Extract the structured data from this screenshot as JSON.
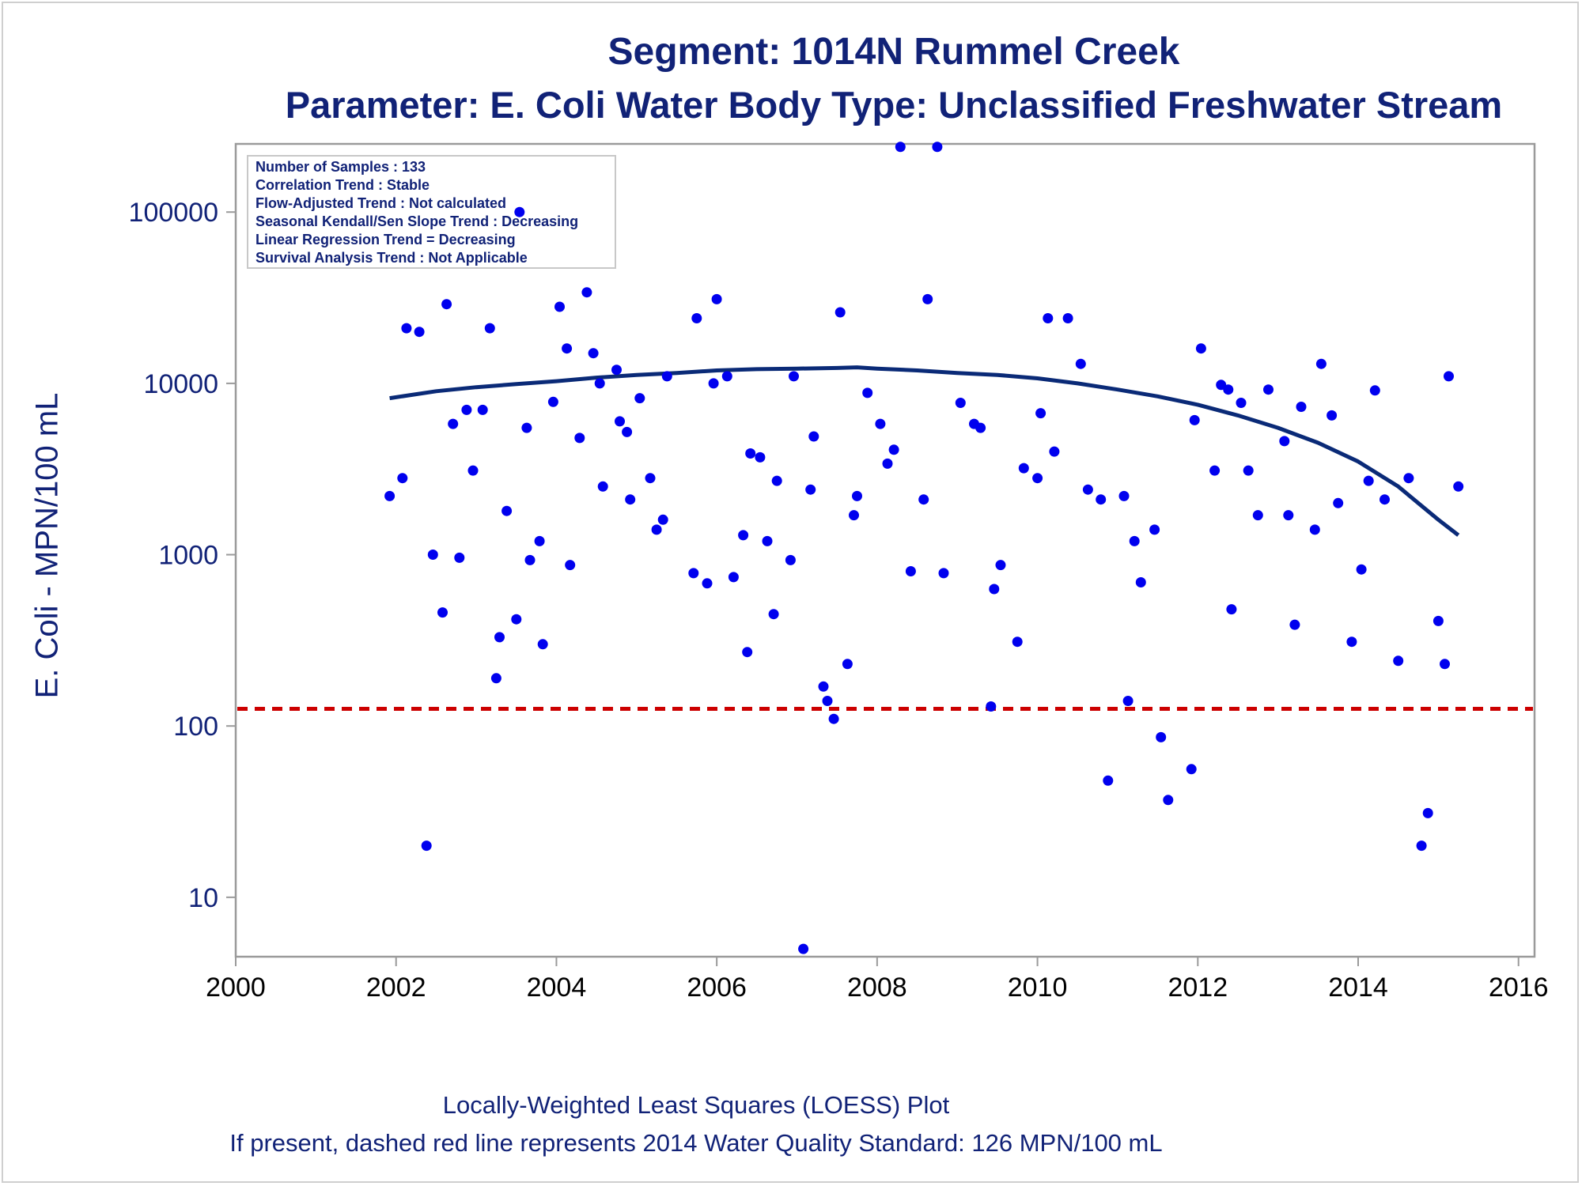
{
  "title": "Segment: 1014N  Rummel Creek",
  "subtitle": "Parameter: E. Coli   Water Body Type: Unclassified Freshwater Stream",
  "ylabel": "E. Coli - MPN/100 mL",
  "footnotes": [
    "Locally-Weighted Least Squares (LOESS) Plot",
    "If present, dashed red line represents 2014 Water Quality Standard: 126 MPN/100 mL"
  ],
  "stats_box": [
    "Number of Samples : 133",
    "Correlation Trend : Stable",
    "Flow-Adjusted Trend : Not calculated",
    "Seasonal Kendall/Sen Slope Trend : Decreasing",
    "Linear Regression Trend = Decreasing",
    "Survival Analysis Trend : Not Applicable"
  ],
  "colors": {
    "text": "#112277",
    "points": "#0000ee",
    "loess": "#0a2a77",
    "standard_line": "#cc0000",
    "axis": "#9a9a9a"
  },
  "chart_data": {
    "type": "scatter",
    "x_ticks": [
      "2000",
      "2002",
      "2004",
      "2006",
      "2008",
      "2010",
      "2012",
      "2014",
      "2016"
    ],
    "xlim": [
      2000,
      2016.2
    ],
    "y_scale": "log",
    "y_ticks": [
      "10",
      "100",
      "1000",
      "10000",
      "100000"
    ],
    "ylim": [
      4.5,
      250000
    ],
    "standard_line": 126,
    "series": [
      {
        "x": [
          2001.92,
          2002.08,
          2002.13,
          2002.29,
          2002.38,
          2002.46,
          2002.58,
          2002.63,
          2002.71,
          2002.79,
          2002.88,
          2002.96,
          2003.08,
          2003.17,
          2003.25,
          2003.29,
          2003.38,
          2003.5,
          2003.54,
          2003.63,
          2003.67,
          2003.79,
          2003.83,
          2003.96,
          2004.04,
          2004.13,
          2004.17,
          2004.29,
          2004.38,
          2004.46,
          2004.54,
          2004.58,
          2004.75,
          2004.79,
          2004.88,
          2004.92,
          2005.04,
          2005.17,
          2005.25,
          2005.33,
          2005.38,
          2005.71,
          2005.75,
          2005.88,
          2005.96,
          2006.0,
          2006.13,
          2006.21,
          2006.33,
          2006.38,
          2006.42,
          2006.54,
          2006.63,
          2006.71,
          2006.75,
          2006.92,
          2006.96,
          2007.08,
          2007.17,
          2007.21,
          2007.33,
          2007.38,
          2007.46,
          2007.54,
          2007.63,
          2007.71,
          2007.75,
          2007.88,
          2008.04,
          2008.13,
          2008.21,
          2008.29,
          2008.42,
          2008.58,
          2008.63,
          2008.75,
          2008.83,
          2009.04,
          2009.21,
          2009.29,
          2009.42,
          2009.46,
          2009.54,
          2009.75,
          2009.83,
          2010.0,
          2010.04,
          2010.13,
          2010.21,
          2010.38,
          2010.54,
          2010.63,
          2010.79,
          2010.88,
          2011.08,
          2011.13,
          2011.21,
          2011.29,
          2011.46,
          2011.54,
          2011.63,
          2011.92,
          2011.96,
          2012.04,
          2012.21,
          2012.29,
          2012.38,
          2012.42,
          2012.54,
          2012.63,
          2012.75,
          2012.88,
          2013.08,
          2013.13,
          2013.21,
          2013.29,
          2013.46,
          2013.54,
          2013.67,
          2013.75,
          2013.92,
          2014.04,
          2014.13,
          2014.21,
          2014.33,
          2014.5,
          2014.63,
          2014.79,
          2014.87,
          2015.0,
          2015.08,
          2015.13,
          2015.25
        ],
        "y": [
          2200,
          2800,
          21000,
          20000,
          20,
          1000,
          460,
          29000,
          5800,
          960,
          7000,
          3100,
          7000,
          21000,
          190,
          330,
          1800,
          420,
          100000,
          5500,
          930,
          1200,
          300,
          7800,
          28000,
          16000,
          870,
          4800,
          34000,
          15000,
          10000,
          2500,
          12000,
          6000,
          5200,
          2100,
          8200,
          2800,
          1400,
          1600,
          11000,
          780,
          24000,
          680,
          10000,
          31000,
          11000,
          740,
          1300,
          270,
          3900,
          3700,
          1200,
          450,
          2700,
          930,
          11000,
          5,
          2400,
          4900,
          170,
          140,
          110,
          26000,
          230,
          1700,
          2200,
          8800,
          5800,
          3400,
          4100,
          240000,
          800,
          2100,
          31000,
          240000,
          780,
          7700,
          5800,
          5500,
          130,
          630,
          870,
          310,
          3200,
          2800,
          6700,
          24000,
          4000,
          24000,
          13000,
          2400,
          2100,
          48,
          2200,
          140,
          1200,
          690,
          1400,
          86,
          37,
          56,
          6100,
          16000,
          3100,
          9800,
          9200,
          480,
          7700,
          3100,
          1700,
          9200,
          4600,
          1700,
          390,
          7300,
          1400,
          13000,
          6500,
          2000,
          310,
          820,
          2700,
          9100,
          2100,
          240,
          2800,
          20,
          31,
          410,
          230,
          11000,
          2500
        ]
      }
    ],
    "loess": {
      "x": [
        2001.92,
        2002.5,
        2003.0,
        2003.5,
        2004.0,
        2004.5,
        2005.0,
        2005.5,
        2006.0,
        2006.5,
        2007.0,
        2007.5,
        2007.75,
        2008.0,
        2008.5,
        2009.0,
        2009.5,
        2010.0,
        2010.5,
        2011.0,
        2011.5,
        2012.0,
        2012.5,
        2013.0,
        2013.5,
        2014.0,
        2014.5,
        2014.75,
        2015.0,
        2015.25
      ],
      "y": [
        8200,
        9000,
        9500,
        9900,
        10300,
        10800,
        11200,
        11500,
        11900,
        12100,
        12200,
        12300,
        12400,
        12200,
        11900,
        11500,
        11200,
        10700,
        10000,
        9200,
        8400,
        7500,
        6500,
        5500,
        4500,
        3500,
        2500,
        2000,
        1600,
        1300
      ]
    }
  }
}
